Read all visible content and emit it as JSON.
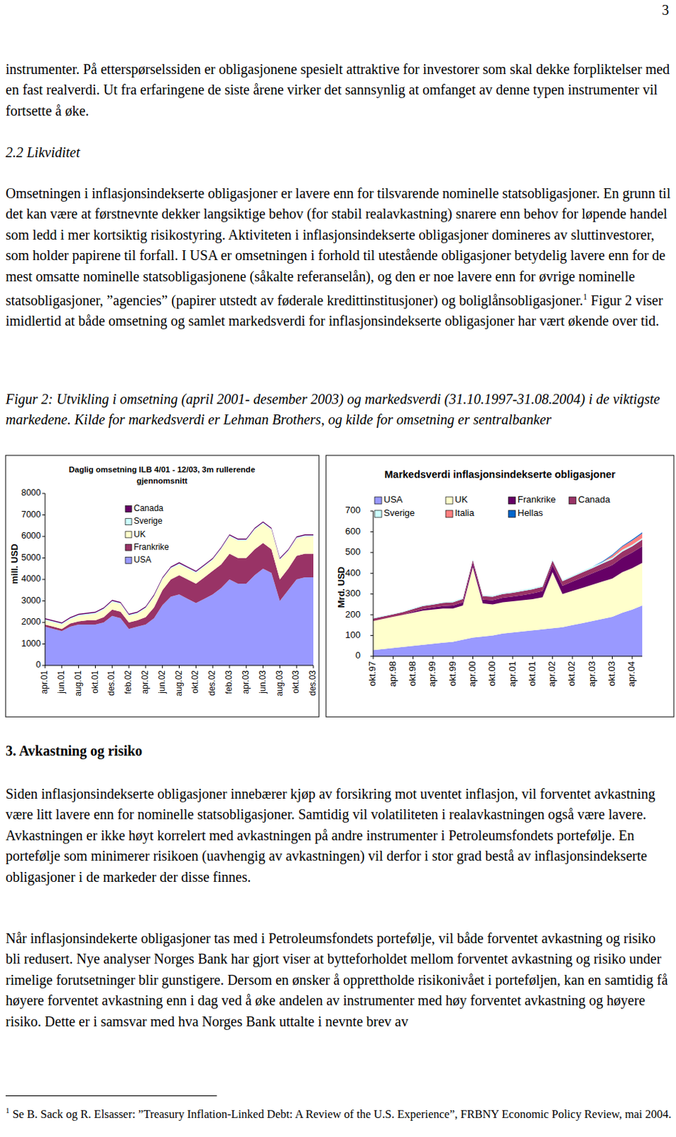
{
  "page_number": "3",
  "body": {
    "p1": "instrumenter. På etterspørselssiden er obligasjonene spesielt attraktive for investorer som skal dekke forpliktelser med en fast realverdi. Ut fra erfaringene de siste årene virker det sannsynlig at omfanget av denne typen instrumenter vil fortsette å øke.",
    "h2": "2.2 Likviditet",
    "p2": {
      "text_before": "Omsetningen i inflasjonsindekserte obligasjoner er lavere enn for tilsvarende nominelle statsobligasjoner. En grunn til det kan være at førstnevnte dekker langsiktige behov (for stabil realavkastning) snarere enn behov for løpende handel som ledd i mer kortsiktig risikostyring. Aktiviteten i inflasjonsindekserte obligasjoner domineres av sluttinvestorer, som holder papirene til forfall. I USA er omsetningen i forhold til utestående obligasjoner betydelig lavere enn for de mest omsatte nominelle statsobligasjonene (såkalte referanselån), og den er noe lavere enn for øvrige nominelle statsobligasjoner, ”agencies” (papirer utstedt av føderale kredittinstitusjoner) og boliglånsobligasjoner.",
      "footnote_ref": "1",
      "text_after": " Figur 2 viser imidlertid at både omsetning og samlet markedsverdi for inflasjonsindekserte obligasjoner har vært økende over tid."
    },
    "caption": "Figur 2: Utvikling i omsetning (april 2001- desember 2003) og markedsverdi (31.10.1997-31.08.2004) i de viktigste markedene. Kilde for markedsverdi er Lehman Brothers, og kilde for omsetning er sentralbanker",
    "h3": "3. Avkastning og risiko",
    "p3": "Siden inflasjonsindekserte obligasjoner innebærer kjøp av forsikring mot uventet inflasjon, vil forventet avkastning være litt lavere enn for nominelle statsobligasjoner. Samtidig vil volatiliteten i realavkastningen også være lavere. Avkastningen er ikke høyt korrelert med avkastningen på andre instrumenter i Petroleumsfondets portefølje. En portefølje som minimerer risikoen (uavhengig av avkastningen) vil derfor i stor grad bestå av inflasjonsindekserte obligasjoner i de markeder der disse finnes.",
    "p4": "Når inflasjonsindekerte obligasjoner tas med i Petroleumsfondets portefølje, vil både forventet avkastning og risiko bli redusert. Nye analyser Norges Bank har gjort viser at bytteforholdet mellom forventet avkastning og risiko under rimelige forutsetninger blir gunstigere. Dersom en ønsker å opprettholde risikonivået i porteføljen, kan en samtidig få høyere forventet avkastning enn i dag ved å øke andelen av instrumenter med høy forventet avkastning og høyere risiko. Dette er i samsvar med hva Norges Bank uttalte i nevnte brev av"
  },
  "footnote": {
    "marker": "1",
    "text": " Se B. Sack og R. Elsasser: ”Treasury Inflation-Linked Debt: A Review of the U.S. Experience”, FRBNY Economic Policy Review, mai 2004."
  },
  "chart_data": [
    {
      "type": "area",
      "stacked": true,
      "grid": false,
      "legend": "upper left",
      "title": "Daglig omsetning ILB 4/01 - 12/03, 3m rullerende gjennomsnitt",
      "y_label": "mill. USD",
      "categories": [
        "apr.01",
        null,
        "jun.01",
        null,
        "aug.01",
        null,
        "okt.01",
        null,
        "des.01",
        null,
        "feb.02",
        null,
        "apr.02",
        null,
        "jun.02",
        null,
        "aug.02",
        null,
        "okt.02",
        null,
        "des.02",
        null,
        "feb.03",
        null,
        "apr.03",
        null,
        "jun.03",
        null,
        "aug.03",
        null,
        "okt.03",
        null,
        "des.03"
      ],
      "ylim": [
        0,
        8000
      ],
      "yticks": [
        0,
        1000,
        2000,
        3000,
        4000,
        5000,
        6000,
        7000,
        8000
      ],
      "series": [
        {
          "name": "USA",
          "color": "#9999ff",
          "values": [
            1800,
            1700,
            1600,
            1800,
            1900,
            1900,
            1900,
            2000,
            2300,
            2200,
            1700,
            1800,
            1900,
            2200,
            2800,
            3200,
            3300,
            3100,
            2900,
            3100,
            3300,
            3600,
            4000,
            3800,
            3800,
            4200,
            4500,
            4300,
            3000,
            3500,
            4000,
            4100,
            4100
          ]
        },
        {
          "name": "Frankrike",
          "color": "#993366",
          "values": [
            100,
            100,
            100,
            150,
            150,
            200,
            200,
            250,
            300,
            300,
            300,
            300,
            350,
            500,
            700,
            800,
            900,
            900,
            900,
            1000,
            1100,
            1100,
            1200,
            1200,
            1200,
            1200,
            1200,
            1100,
            1000,
            1000,
            1100,
            1100,
            1100
          ]
        },
        {
          "name": "UK",
          "color": "#ffffcc",
          "values": [
            200,
            200,
            200,
            200,
            250,
            250,
            300,
            350,
            350,
            350,
            300,
            300,
            400,
            500,
            500,
            500,
            500,
            500,
            500,
            500,
            500,
            700,
            800,
            800,
            800,
            900,
            900,
            900,
            900,
            800,
            800,
            800,
            800
          ]
        },
        {
          "name": "Sverige",
          "color": "#ccffff",
          "values": [
            50,
            50,
            50,
            50,
            50,
            50,
            50,
            50,
            50,
            50,
            50,
            50,
            50,
            50,
            50,
            50,
            50,
            50,
            50,
            50,
            50,
            50,
            50,
            50,
            50,
            50,
            50,
            50,
            50,
            50,
            50,
            50,
            50
          ]
        },
        {
          "name": "Canada",
          "color": "#660066",
          "values": [
            50,
            50,
            50,
            50,
            50,
            50,
            50,
            50,
            50,
            50,
            50,
            50,
            50,
            50,
            50,
            50,
            50,
            50,
            50,
            50,
            50,
            50,
            50,
            50,
            50,
            50,
            50,
            50,
            50,
            50,
            50,
            50,
            50
          ]
        }
      ]
    },
    {
      "type": "area",
      "stacked": true,
      "grid": false,
      "legend": "top",
      "title": "Markedsverdi inflasjonsindekserte obligasjoner",
      "y_label": "Mrd. USD",
      "categories": [
        "okt.97",
        null,
        "apr.98",
        null,
        "okt.98",
        null,
        "apr.99",
        null,
        "okt.99",
        null,
        "apr.00",
        null,
        "okt.00",
        null,
        "apr.01",
        null,
        "okt.01",
        null,
        "apr.02",
        null,
        "okt.02",
        null,
        "apr.03",
        null,
        "okt.03",
        null,
        "apr.04",
        null
      ],
      "ylim": [
        0,
        700
      ],
      "yticks": [
        0,
        100,
        200,
        300,
        400,
        500,
        600,
        700
      ],
      "series": [
        {
          "name": "USA",
          "color": "#9999ff",
          "values": [
            30,
            35,
            40,
            45,
            50,
            55,
            60,
            65,
            70,
            80,
            90,
            95,
            100,
            110,
            115,
            120,
            125,
            130,
            135,
            140,
            150,
            160,
            170,
            180,
            190,
            210,
            225,
            245
          ]
        },
        {
          "name": "UK",
          "color": "#ffffcc",
          "values": [
            140,
            145,
            150,
            155,
            160,
            165,
            165,
            165,
            160,
            165,
            340,
            160,
            150,
            150,
            150,
            150,
            150,
            155,
            270,
            160,
            165,
            170,
            175,
            180,
            185,
            195,
            200,
            205
          ]
        },
        {
          "name": "Frankrike",
          "color": "#660066",
          "values": [
            0,
            0,
            0,
            0,
            5,
            8,
            10,
            12,
            15,
            15,
            17,
            18,
            20,
            22,
            23,
            25,
            28,
            30,
            35,
            40,
            45,
            50,
            55,
            60,
            65,
            70,
            75,
            80
          ]
        },
        {
          "name": "Canada",
          "color": "#993366",
          "values": [
            12,
            12,
            12,
            13,
            13,
            14,
            14,
            15,
            15,
            16,
            16,
            17,
            17,
            18,
            18,
            19,
            20,
            20,
            21,
            22,
            23,
            24,
            25,
            27,
            28,
            30,
            30,
            32
          ]
        },
        {
          "name": "Sverige",
          "color": "#ccffff",
          "values": [
            3,
            3,
            3,
            3,
            4,
            4,
            4,
            4,
            5,
            5,
            5,
            5,
            5,
            5,
            5,
            6,
            6,
            6,
            6,
            6,
            6,
            7,
            7,
            7,
            8,
            8,
            8,
            8
          ]
        },
        {
          "name": "Italia",
          "color": "#ff8080",
          "values": [
            0,
            0,
            0,
            0,
            0,
            0,
            0,
            0,
            0,
            0,
            0,
            0,
            0,
            0,
            0,
            0,
            0,
            0,
            0,
            0,
            0,
            0,
            0,
            0,
            10,
            15,
            20,
            22
          ]
        },
        {
          "name": "Hellas",
          "color": "#0066cc",
          "values": [
            0,
            0,
            0,
            0,
            0,
            0,
            0,
            0,
            0,
            0,
            0,
            0,
            0,
            0,
            0,
            0,
            0,
            0,
            0,
            0,
            0,
            0,
            0,
            3,
            4,
            4,
            5,
            5
          ]
        }
      ]
    }
  ]
}
